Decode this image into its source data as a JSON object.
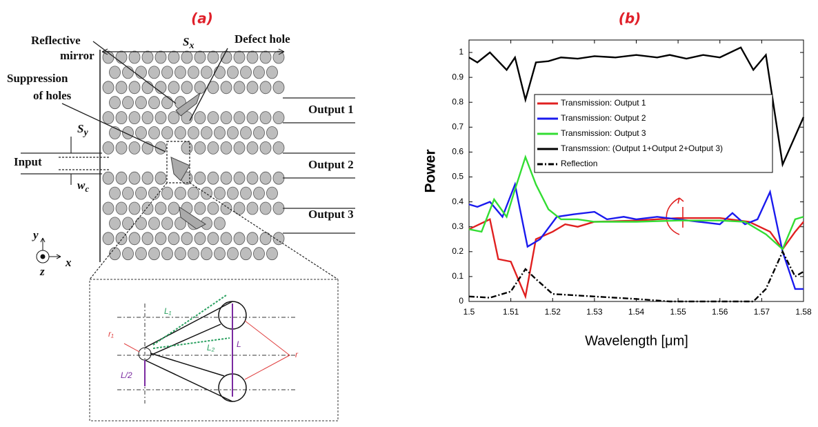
{
  "diagram": {
    "title": "(a)",
    "reflective_mirror": [
      "Reflective",
      "mirror"
    ],
    "defect_hole": "Defect hole",
    "suppression": [
      "Suppression",
      "of holes"
    ],
    "sx": {
      "base": "S",
      "sub": "x"
    },
    "sy": {
      "base": "S",
      "sub": "y"
    },
    "wc": {
      "base": "w",
      "sub": "c"
    },
    "input": "Input",
    "outputs": [
      "Output 1",
      "Output 2",
      "Output 3"
    ],
    "axes": {
      "y": "y",
      "x": "x",
      "z": "z"
    },
    "inset": {
      "l1": "L₁",
      "l2": "L₂",
      "l": "L",
      "l_half": "L/2",
      "r1": "r₁",
      "r": "r"
    }
  },
  "chart_data": {
    "type": "line",
    "title": "(b)",
    "xlabel": "Wavelength [μm]",
    "ylabel": "Power",
    "xlim": [
      1.5,
      1.58
    ],
    "xticks": [
      1.5,
      1.51,
      1.52,
      1.53,
      1.54,
      1.55,
      1.56,
      1.57,
      1.58
    ],
    "ylim": [
      0,
      1.05
    ],
    "yticks": [
      0,
      0.1,
      0.2,
      0.3,
      0.4,
      0.5,
      0.6,
      0.7,
      0.8,
      0.9,
      1
    ],
    "grid": false,
    "legend_loc": "upper right",
    "series": [
      {
        "name": "Transmission: Output 1",
        "color": "#e02020",
        "line_style": "solid",
        "x": [
          1.5,
          1.505,
          1.507,
          1.51,
          1.5135,
          1.516,
          1.52,
          1.523,
          1.526,
          1.53,
          1.54,
          1.55,
          1.56,
          1.567,
          1.572,
          1.575,
          1.578,
          1.58
        ],
        "values": [
          0.29,
          0.33,
          0.17,
          0.16,
          0.02,
          0.25,
          0.28,
          0.31,
          0.3,
          0.32,
          0.325,
          0.335,
          0.335,
          0.32,
          0.28,
          0.21,
          0.28,
          0.32
        ]
      },
      {
        "name": "Transmission: Output 2",
        "color": "#1a1aee",
        "line_style": "solid",
        "x": [
          1.5,
          1.502,
          1.505,
          1.508,
          1.511,
          1.514,
          1.517,
          1.521,
          1.525,
          1.53,
          1.533,
          1.537,
          1.54,
          1.545,
          1.55,
          1.555,
          1.56,
          1.563,
          1.566,
          1.569,
          1.572,
          1.575,
          1.578,
          1.58
        ],
        "values": [
          0.39,
          0.38,
          0.4,
          0.34,
          0.47,
          0.22,
          0.25,
          0.34,
          0.35,
          0.36,
          0.33,
          0.34,
          0.33,
          0.34,
          0.33,
          0.32,
          0.31,
          0.355,
          0.31,
          0.33,
          0.44,
          0.2,
          0.05,
          0.05
        ]
      },
      {
        "name": "Transmission: Output 3",
        "color": "#33dd33",
        "line_style": "solid",
        "x": [
          1.5,
          1.503,
          1.506,
          1.509,
          1.511,
          1.5135,
          1.516,
          1.519,
          1.522,
          1.526,
          1.53,
          1.54,
          1.55,
          1.56,
          1.566,
          1.571,
          1.575,
          1.578,
          1.58
        ],
        "values": [
          0.29,
          0.28,
          0.41,
          0.34,
          0.45,
          0.58,
          0.47,
          0.37,
          0.33,
          0.33,
          0.32,
          0.32,
          0.325,
          0.325,
          0.32,
          0.27,
          0.21,
          0.33,
          0.34
        ]
      },
      {
        "name": "Transmssion: (Output 1+Output 2+Output 3)",
        "color": "#000000",
        "line_style": "solid",
        "x": [
          1.5,
          1.502,
          1.505,
          1.509,
          1.511,
          1.5135,
          1.516,
          1.519,
          1.522,
          1.526,
          1.53,
          1.535,
          1.54,
          1.545,
          1.548,
          1.552,
          1.556,
          1.56,
          1.565,
          1.568,
          1.571,
          1.575,
          1.58
        ],
        "values": [
          0.98,
          0.96,
          1.0,
          0.93,
          0.98,
          0.81,
          0.96,
          0.965,
          0.98,
          0.975,
          0.985,
          0.98,
          0.99,
          0.98,
          0.99,
          0.975,
          0.99,
          0.98,
          1.02,
          0.93,
          0.99,
          0.55,
          0.74
        ]
      },
      {
        "name": "Reflection",
        "color": "#000000",
        "line_style": "dashdot",
        "x": [
          1.5,
          1.505,
          1.51,
          1.5135,
          1.516,
          1.52,
          1.53,
          1.54,
          1.548,
          1.568,
          1.571,
          1.575,
          1.578,
          1.58
        ],
        "values": [
          0.02,
          0.015,
          0.04,
          0.13,
          0.09,
          0.03,
          0.02,
          0.01,
          0,
          0,
          0.05,
          0.2,
          0.1,
          0.12
        ]
      }
    ]
  }
}
